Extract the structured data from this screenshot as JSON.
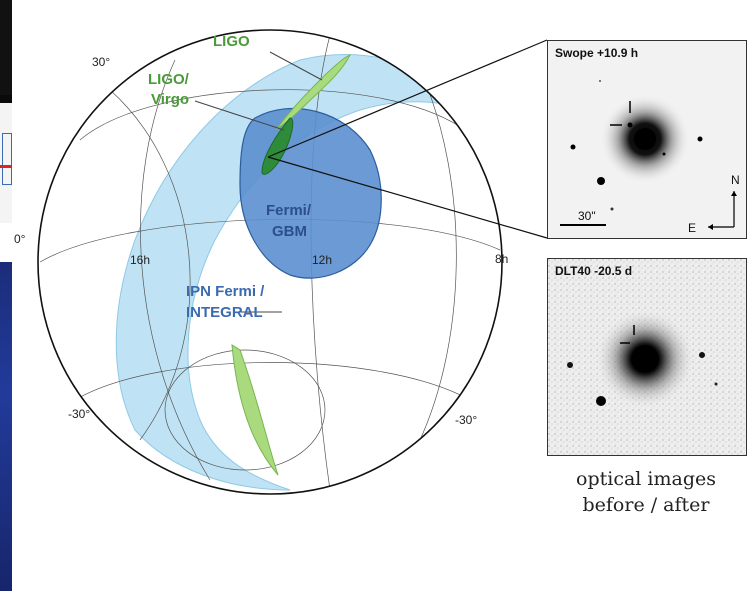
{
  "sky_map": {
    "dec_labels": [
      "30°",
      "0°",
      "-30°",
      "-30°"
    ],
    "ra_labels": [
      "16h",
      "12h",
      "8h"
    ],
    "regions": {
      "ligo": "LIGO",
      "ligo_virgo_line1": "LIGO/",
      "ligo_virgo_line2": "Virgo",
      "fermi_line1": "Fermi/",
      "fermi_line2": "GBM",
      "ipn_line1": "IPN Fermi /",
      "ipn_line2": "INTEGRAL"
    },
    "colors": {
      "ipn_band": "#bfe3f4",
      "fermi_gbm": "#5b8fcf",
      "ligo": "#a9db7e",
      "ligo_virgo": "#2e8b3a",
      "label_green": "#4a9a3a",
      "label_blue": "#3a6ab0"
    }
  },
  "insets": {
    "top": {
      "title": "Swope +10.9 h",
      "scale_label": "30\"",
      "north_label": "N",
      "east_label": "E"
    },
    "bottom": {
      "title": "DLT40 -20.5 d"
    }
  },
  "caption": {
    "line1": "optical images",
    "line2": "before / after"
  }
}
